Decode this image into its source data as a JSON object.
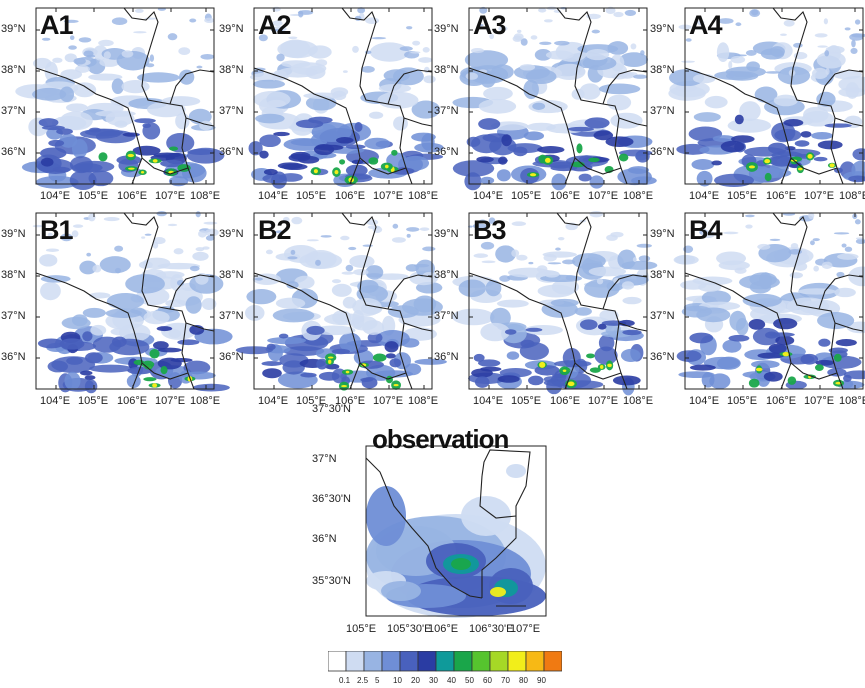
{
  "figure": {
    "panels": [
      {
        "id": "A1",
        "label": "A1"
      },
      {
        "id": "A2",
        "label": "A2"
      },
      {
        "id": "A3",
        "label": "A3"
      },
      {
        "id": "A4",
        "label": "A4"
      },
      {
        "id": "B1",
        "label": "B1"
      },
      {
        "id": "B2",
        "label": "B2"
      },
      {
        "id": "B3",
        "label": "B3"
      },
      {
        "id": "B4",
        "label": "B4"
      }
    ],
    "small_map_axes": {
      "lat_ticks": [
        "39°N",
        "38°N",
        "37°N",
        "36°N"
      ],
      "lon_ticks": [
        "104°E",
        "105°E",
        "106°E",
        "107°E",
        "108°E"
      ]
    },
    "observation": {
      "label": "observation",
      "lat_ticks": [
        "37°30'N",
        "37°N",
        "36°30'N",
        "36°N",
        "35°30'N"
      ],
      "lon_ticks": [
        "105°E",
        "105°30'E",
        "106°E",
        "106°30'E",
        "107°E"
      ]
    },
    "colorbar": {
      "levels": [
        "0.1",
        "2.5",
        "5",
        "10",
        "20",
        "30",
        "40",
        "50",
        "60",
        "70",
        "80",
        "90"
      ],
      "colors": [
        "#ffffff",
        "#cfdcf2",
        "#98b4e3",
        "#6f8ed6",
        "#4961bd",
        "#2a3ca3",
        "#0f9a9a",
        "#1aa64a",
        "#56c42e",
        "#a6d826",
        "#f2ee1a",
        "#f7b915",
        "#f07a12",
        "#e8311a"
      ]
    }
  }
}
